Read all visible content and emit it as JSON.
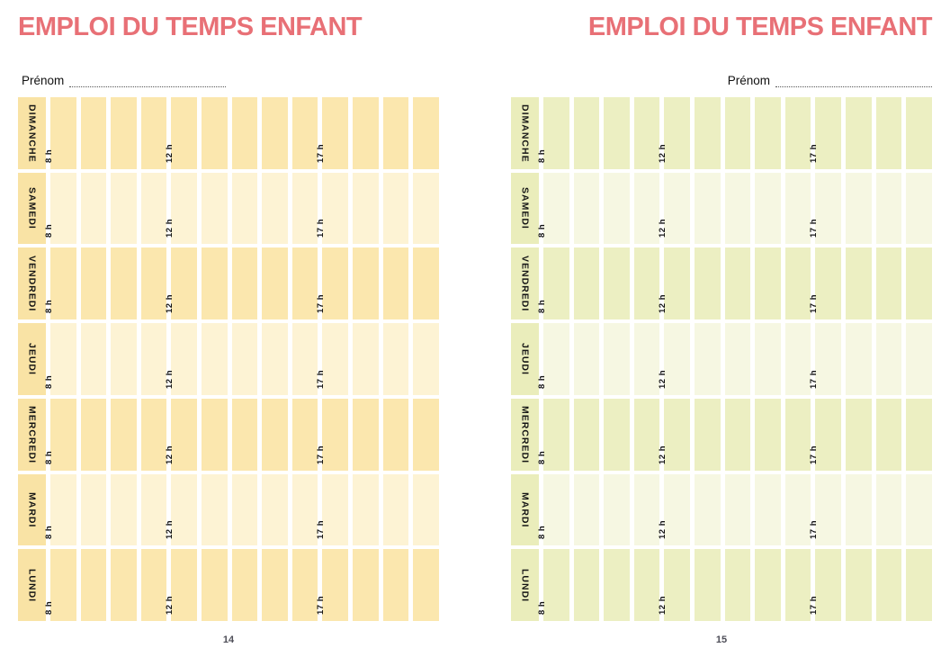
{
  "accent": {
    "title_color": "#E87076",
    "page_number_color": "#4E4E58"
  },
  "pages": [
    {
      "title": "EMPLOI DU TEMPS ENFANT",
      "name_field": {
        "label": "Prénom",
        "value": ""
      },
      "page_number": "14",
      "schedule": {
        "days": [
          "DIMANCHE",
          "SAMEDI",
          "VENDREDI",
          "JEUDI",
          "MERCREDI",
          "MARDI",
          "LUNDI"
        ],
        "columns": 13,
        "hour_labels": [
          {
            "column": 1,
            "label": "8 h"
          },
          {
            "column": 5,
            "label": "12 h"
          },
          {
            "column": 10,
            "label": "17 h"
          }
        ]
      },
      "colors": {
        "day_column": "#F9E3A5",
        "row_dark": "#FBE7AE",
        "row_light": "#FDF3D4"
      }
    },
    {
      "title": "EMPLOI DU TEMPS ENFANT",
      "name_field": {
        "label": "Prénom",
        "value": ""
      },
      "page_number": "15",
      "schedule": {
        "days": [
          "DIMANCHE",
          "SAMEDI",
          "VENDREDI",
          "JEUDI",
          "MERCREDI",
          "MARDI",
          "LUNDI"
        ],
        "columns": 13,
        "hour_labels": [
          {
            "column": 1,
            "label": "8 h"
          },
          {
            "column": 5,
            "label": "12 h"
          },
          {
            "column": 10,
            "label": "17 h"
          }
        ]
      },
      "colors": {
        "day_column": "#EAEDBB",
        "row_dark": "#ECEFC2",
        "row_light": "#F6F7E2"
      }
    }
  ]
}
